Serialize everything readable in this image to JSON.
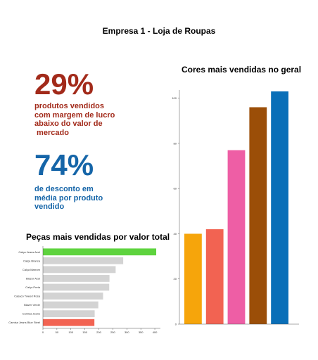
{
  "page": {
    "title": "Empresa 1 - Loja de Roupas"
  },
  "kpis": [
    {
      "value": "29%",
      "text_lines": [
        "produtos vendidos",
        "com margem de lucro",
        "abaixo do valor de",
        " mercado"
      ],
      "color": "#a22a1a"
    },
    {
      "value": "74%",
      "text_lines": [
        "de desconto em",
        "média por produto",
        "vendido"
      ],
      "color": "#1565a8"
    }
  ],
  "chart_data": [
    {
      "type": "bar",
      "orientation": "horizontal",
      "title": "Peças mais vendidas por valor total",
      "categories": [
        "Calça Jeans Azul",
        "Calça Branca",
        "Calça Marrom",
        "Blazer Azul",
        "Calça Preta",
        "Casaco Tweed Rosa",
        "Blazer Verde",
        "Camisa Jeans",
        "Camisa Jeans Blue Steel"
      ],
      "values": [
        405,
        287,
        260,
        238,
        237,
        215,
        198,
        185,
        184
      ],
      "colors": [
        "#5ed33e",
        "#d3d3d3",
        "#d3d3d3",
        "#d3d3d3",
        "#d3d3d3",
        "#d3d3d3",
        "#d3d3d3",
        "#d3d3d3",
        "#f26352"
      ],
      "x_ticks": [
        0,
        50,
        100,
        150,
        200,
        250,
        300,
        350,
        400
      ],
      "xlim": [
        0,
        420
      ],
      "grid": false
    },
    {
      "type": "bar",
      "title": "Cores mais vendidas no geral",
      "values": [
        40,
        42,
        77,
        96,
        103
      ],
      "colors": [
        "#f6a50b",
        "#f26352",
        "#ee5ea5",
        "#9b4e08",
        "#0a6fb8"
      ],
      "y_ticks": [
        0,
        20,
        40,
        60,
        80,
        100
      ],
      "ylim": [
        0,
        103
      ],
      "grid": false
    }
  ]
}
